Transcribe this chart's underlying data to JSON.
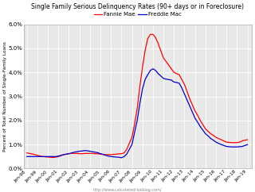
{
  "title": "Single Family Serious Delinquency Rates (90+ days or in Foreclosure)",
  "ylabel": "Percent of Total Number of Single-Family Loans",
  "watermark": "http://www.calculatedriskblog.com/",
  "legend": [
    "Fannie Mae",
    "Freddie Mac"
  ],
  "legend_colors": [
    "#ff0000",
    "#0000cc"
  ],
  "ylim": [
    0.0,
    0.06
  ],
  "yticks": [
    0.0,
    0.01,
    0.02,
    0.03,
    0.04,
    0.05,
    0.06
  ],
  "ytick_labels": [
    "0.0%",
    "1.0%",
    "2.0%",
    "3.0%",
    "4.0%",
    "5.0%",
    "6.0%"
  ],
  "background_color": "#e8e8e8",
  "fannie_x": [
    1998.0,
    1998.25,
    1998.5,
    1998.75,
    1999.0,
    1999.25,
    1999.5,
    1999.75,
    2000.0,
    2000.25,
    2000.5,
    2000.75,
    2001.0,
    2001.25,
    2001.5,
    2001.75,
    2002.0,
    2002.25,
    2002.5,
    2002.75,
    2003.0,
    2003.25,
    2003.5,
    2003.75,
    2004.0,
    2004.25,
    2004.5,
    2004.75,
    2005.0,
    2005.25,
    2005.5,
    2005.75,
    2006.0,
    2006.25,
    2006.5,
    2006.75,
    2007.0,
    2007.25,
    2007.5,
    2007.75,
    2008.0,
    2008.25,
    2008.5,
    2008.75,
    2009.0,
    2009.25,
    2009.5,
    2009.75,
    2010.0,
    2010.25,
    2010.5,
    2010.75,
    2011.0,
    2011.25,
    2011.5,
    2011.75,
    2012.0,
    2012.25,
    2012.5,
    2012.75,
    2013.0,
    2013.25,
    2013.5,
    2013.75,
    2014.0,
    2014.25,
    2014.5,
    2014.75,
    2015.0,
    2015.25,
    2015.5,
    2015.75,
    2016.0,
    2016.25,
    2016.5,
    2016.75,
    2017.0,
    2017.25,
    2017.5,
    2017.75,
    2018.0,
    2018.25,
    2018.5,
    2018.75,
    2019.0
  ],
  "fannie_y": [
    0.0065,
    0.0063,
    0.0061,
    0.0058,
    0.0055,
    0.0052,
    0.005,
    0.0049,
    0.0048,
    0.0047,
    0.0046,
    0.0048,
    0.005,
    0.0054,
    0.0058,
    0.006,
    0.0062,
    0.0063,
    0.0063,
    0.0063,
    0.0062,
    0.0062,
    0.0063,
    0.0063,
    0.0063,
    0.0063,
    0.0062,
    0.0062,
    0.006,
    0.0059,
    0.0058,
    0.0058,
    0.0058,
    0.0059,
    0.006,
    0.0061,
    0.0062,
    0.0065,
    0.008,
    0.0105,
    0.013,
    0.0185,
    0.025,
    0.034,
    0.042,
    0.049,
    0.054,
    0.0558,
    0.0558,
    0.0545,
    0.052,
    0.049,
    0.046,
    0.0445,
    0.043,
    0.0415,
    0.04,
    0.0395,
    0.039,
    0.037,
    0.035,
    0.032,
    0.029,
    0.0265,
    0.024,
    0.0222,
    0.02,
    0.0183,
    0.0165,
    0.0155,
    0.0145,
    0.0138,
    0.013,
    0.0125,
    0.012,
    0.0115,
    0.011,
    0.0109,
    0.0108,
    0.0108,
    0.0108,
    0.011,
    0.0115,
    0.0118,
    0.012
  ],
  "freddie_x": [
    1998.0,
    1998.25,
    1998.5,
    1998.75,
    1999.0,
    1999.25,
    1999.5,
    1999.75,
    2000.0,
    2000.25,
    2000.5,
    2000.75,
    2001.0,
    2001.25,
    2001.5,
    2001.75,
    2002.0,
    2002.25,
    2002.5,
    2002.75,
    2003.0,
    2003.25,
    2003.5,
    2003.75,
    2004.0,
    2004.25,
    2004.5,
    2004.75,
    2005.0,
    2005.25,
    2005.5,
    2005.75,
    2006.0,
    2006.25,
    2006.5,
    2006.75,
    2007.0,
    2007.25,
    2007.5,
    2007.75,
    2008.0,
    2008.25,
    2008.5,
    2008.75,
    2009.0,
    2009.25,
    2009.5,
    2009.75,
    2010.0,
    2010.25,
    2010.5,
    2010.75,
    2011.0,
    2011.25,
    2011.5,
    2011.75,
    2012.0,
    2012.25,
    2012.5,
    2012.75,
    2013.0,
    2013.25,
    2013.5,
    2013.75,
    2014.0,
    2014.25,
    2014.5,
    2014.75,
    2015.0,
    2015.25,
    2015.5,
    2015.75,
    2016.0,
    2016.25,
    2016.5,
    2016.75,
    2017.0,
    2017.25,
    2017.5,
    2017.75,
    2018.0,
    2018.25,
    2018.5,
    2018.75,
    2019.0
  ],
  "freddie_y": [
    0.005,
    0.005,
    0.005,
    0.005,
    0.005,
    0.005,
    0.005,
    0.005,
    0.005,
    0.005,
    0.005,
    0.005,
    0.0052,
    0.0055,
    0.0058,
    0.006,
    0.0062,
    0.0065,
    0.0068,
    0.007,
    0.0072,
    0.0073,
    0.0075,
    0.0074,
    0.0072,
    0.007,
    0.0068,
    0.0066,
    0.0062,
    0.0059,
    0.0055,
    0.0052,
    0.005,
    0.0049,
    0.0048,
    0.0047,
    0.0045,
    0.005,
    0.006,
    0.008,
    0.01,
    0.015,
    0.02,
    0.027,
    0.033,
    0.037,
    0.039,
    0.0408,
    0.0415,
    0.0408,
    0.0395,
    0.0385,
    0.0375,
    0.0372,
    0.037,
    0.0368,
    0.036,
    0.0358,
    0.0355,
    0.0335,
    0.031,
    0.0285,
    0.026,
    0.0235,
    0.021,
    0.0193,
    0.0175,
    0.016,
    0.0145,
    0.0136,
    0.0125,
    0.0118,
    0.011,
    0.0105,
    0.01,
    0.0096,
    0.0092,
    0.0091,
    0.009,
    0.009,
    0.009,
    0.0091,
    0.0092,
    0.0096,
    0.01
  ],
  "xtick_positions": [
    1998,
    1999,
    2000,
    2001,
    2002,
    2003,
    2004,
    2005,
    2006,
    2007,
    2008,
    2009,
    2010,
    2011,
    2012,
    2013,
    2014,
    2015,
    2016,
    2017,
    2018,
    2019
  ],
  "xtick_labels": [
    "Jan-98",
    "Jan-99",
    "Jan-00",
    "Jan-01",
    "Jan-02",
    "Jan-03",
    "Jan-04",
    "Jan-05",
    "Jan-06",
    "Jan-07",
    "Jan-08",
    "Jan-09",
    "Jan-10",
    "Jan-11",
    "Jan-12",
    "Jan-13",
    "Jan-14",
    "Jan-15",
    "Jan-16",
    "Jan-17",
    "Jan-18",
    "Jan-19"
  ]
}
